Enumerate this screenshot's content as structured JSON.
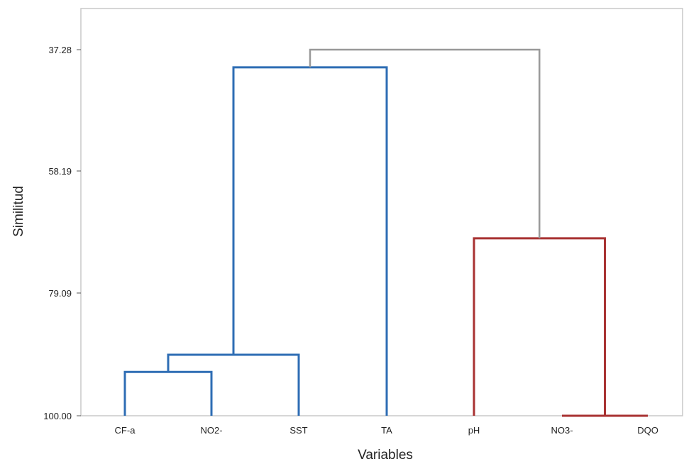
{
  "chart_data": {
    "type": "dendrogram",
    "title": "",
    "xlabel": "Variables",
    "ylabel": "Similitud",
    "yticks": [
      "37.28",
      "58.19",
      "79.09",
      "100.00"
    ],
    "ylim": [
      37.28,
      100.0
    ],
    "grid": false,
    "leaves": [
      "CF-a",
      "NO2-",
      "SST",
      "TA",
      "pH",
      "NO3-",
      "DQO"
    ],
    "merges": [
      {
        "left": "NO3-",
        "right": "DQO",
        "similarity": 100.0,
        "color": "#a83232"
      },
      {
        "left": "CF-a",
        "right": "NO2-",
        "similarity": 92.5,
        "color": "#2e6db4"
      },
      {
        "left": "CF-a+NO2-",
        "right": "SST",
        "similarity": 89.55,
        "color": "#2e6db4"
      },
      {
        "left": "CF-a+NO2-+SST",
        "right": "TA",
        "similarity": 40.3,
        "color": "#2e6db4"
      },
      {
        "left": "pH",
        "right": "NO3-+DQO",
        "similarity": 69.6,
        "color": "#a83232"
      },
      {
        "left": "CF-a+NO2-+SST+TA",
        "right": "pH+NO3-+DQO",
        "similarity": 37.28,
        "color": "#999999"
      }
    ],
    "cluster_colors": {
      "cluster1": "#2e6db4",
      "cluster2": "#a83232",
      "root": "#999999"
    }
  }
}
